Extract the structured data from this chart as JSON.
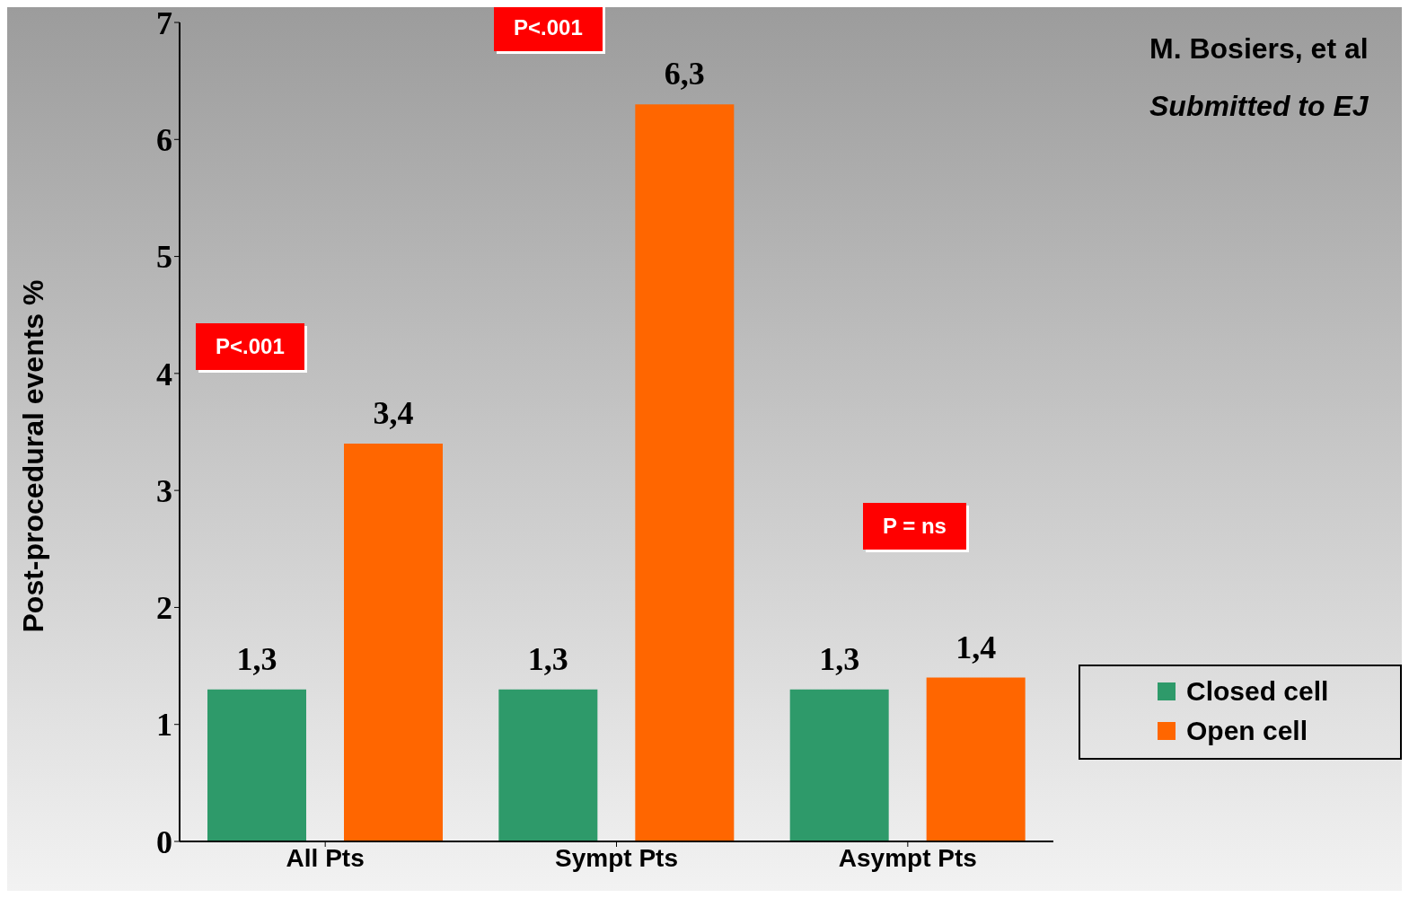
{
  "chart_data": {
    "type": "bar",
    "ylabel": "Post-procedural events %",
    "categories": [
      "All Pts",
      "Sympt Pts",
      "Asympt Pts"
    ],
    "series": [
      {
        "name": "Closed cell",
        "color": "#2e9a6a",
        "values": [
          1.3,
          1.3,
          1.3
        ],
        "value_labels": [
          "1,3",
          "1,3",
          "1,3"
        ]
      },
      {
        "name": "Open cell",
        "color": "#ff6600",
        "values": [
          3.4,
          6.3,
          1.4
        ],
        "value_labels": [
          "3,4",
          "6,3",
          "1,4"
        ]
      }
    ],
    "ylim": [
      0,
      7
    ],
    "yticks": [
      0,
      1,
      2,
      3,
      4,
      5,
      6,
      7
    ],
    "legend": "right",
    "annotations": [
      "P<.001",
      "P<.001",
      "P = ns",
      "M. Bosiers, et al",
      "Submitted to EJ"
    ]
  }
}
